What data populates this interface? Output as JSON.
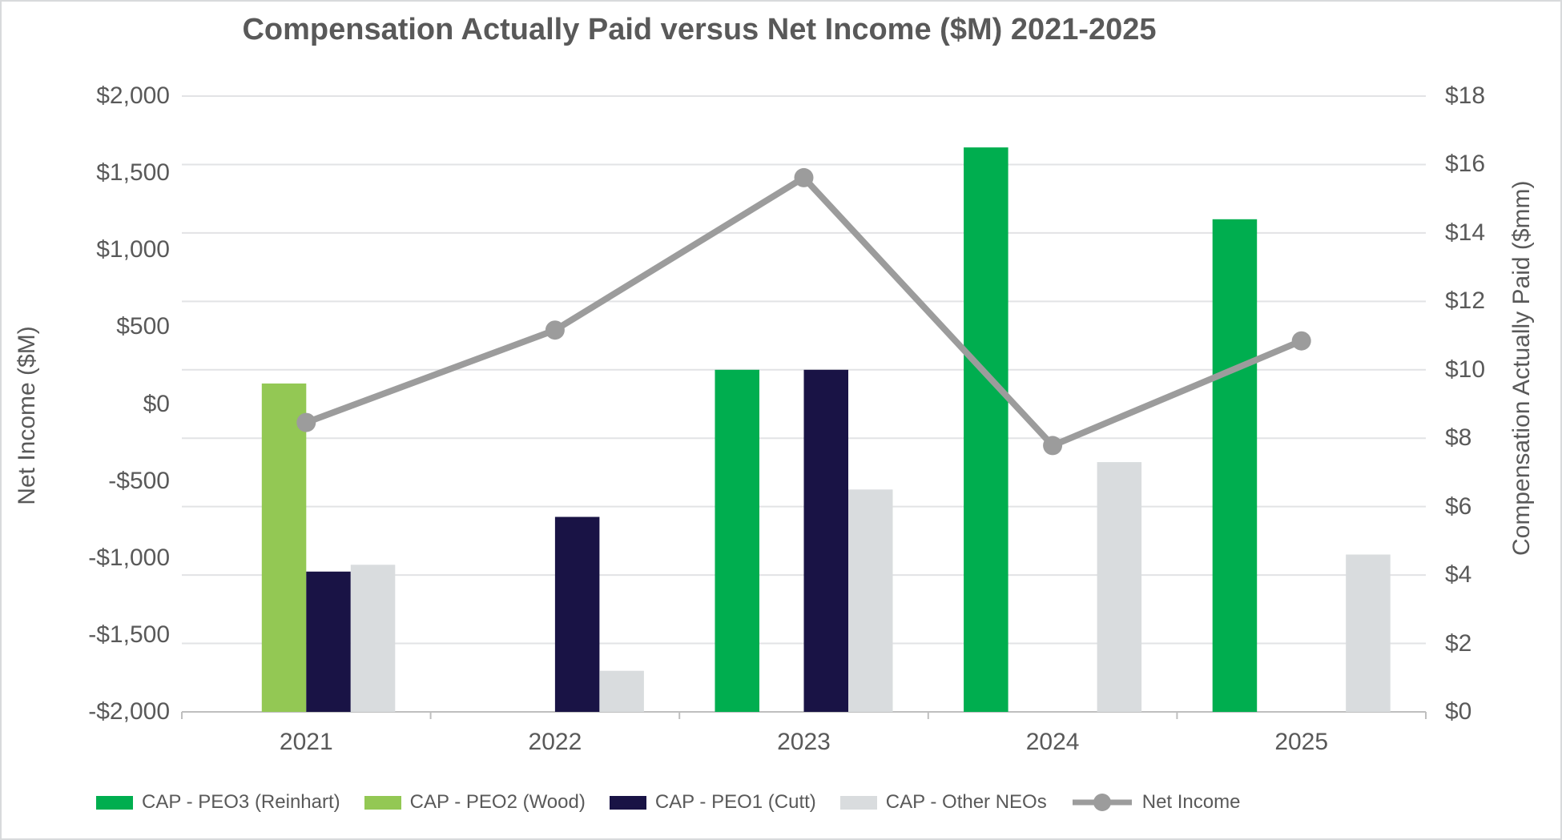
{
  "chart_data": {
    "type": "bar",
    "subtype": "combo-clustered-bar-with-line",
    "title": "Compensation Actually Paid versus Net Income ($M) 2021-2025",
    "categories": [
      "2021",
      "2022",
      "2023",
      "2024",
      "2025"
    ],
    "bar_series": [
      {
        "name": "CAP - PEO3 (Reinhart)",
        "color": "#00ae4f",
        "axis": "right",
        "values": [
          null,
          null,
          10.0,
          16.5,
          14.4
        ]
      },
      {
        "name": "CAP - PEO2 (Wood)",
        "color": "#93c854",
        "axis": "right",
        "values": [
          9.6,
          null,
          null,
          null,
          null
        ]
      },
      {
        "name": "CAP - PEO1 (Cutt)",
        "color": "#191345",
        "axis": "right",
        "values": [
          4.1,
          5.7,
          10.0,
          null,
          null
        ]
      },
      {
        "name": "CAP - Other NEOs",
        "color": "#d9dcde",
        "axis": "right",
        "values": [
          4.3,
          1.2,
          6.5,
          7.3,
          4.6
        ]
      }
    ],
    "line_series": {
      "name": "Net Income",
      "color": "#9c9c9c",
      "axis": "left",
      "values": [
        -120,
        480,
        1470,
        -270,
        410
      ]
    },
    "left_axis": {
      "title": "Net Income ($M)",
      "min": -2000,
      "max": 2000,
      "step": 500,
      "ticks": [
        "$2,000",
        "$1,500",
        "$1,000",
        "$500",
        "$0",
        "-$500",
        "-$1,000",
        "-$1,500",
        "-$2,000"
      ]
    },
    "right_axis": {
      "title": "Compensation Actually Paid ($mm)",
      "min": 0,
      "max": 18,
      "step": 2,
      "ticks": [
        "$18",
        "$16",
        "$14",
        "$12",
        "$10",
        "$8",
        "$6",
        "$4",
        "$2",
        "$0"
      ]
    },
    "grid": {
      "horizontal_lines": "right-axis-major",
      "color": "#e2e3e5"
    },
    "legend_position": "bottom"
  }
}
